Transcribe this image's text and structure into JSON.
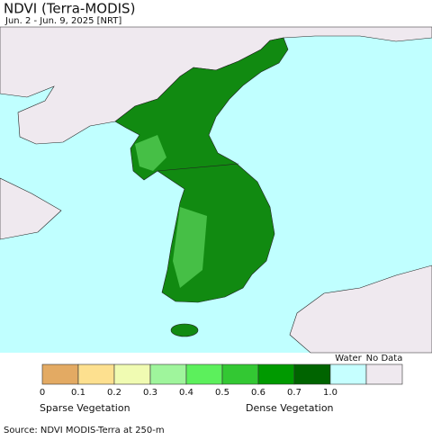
{
  "header": {
    "title": "NDVI (Terra-MODIS)",
    "subtitle": "Jun. 2 - Jun. 9, 2025 [NRT]"
  },
  "legend": {
    "bins": [
      {
        "color": "#e3aa63"
      },
      {
        "color": "#fde08f"
      },
      {
        "color": "#f0fbb2"
      },
      {
        "color": "#9ff59c"
      },
      {
        "color": "#5cf05c"
      },
      {
        "color": "#33c833"
      },
      {
        "color": "#009a00"
      },
      {
        "color": "#006400"
      }
    ],
    "ticks": [
      "0",
      "0.1",
      "0.2",
      "0.3",
      "0.4",
      "0.5",
      "0.6",
      "0.7",
      "1.0"
    ],
    "water": {
      "label": "Water",
      "color": "#c6ffff"
    },
    "no_data": {
      "label": "No Data",
      "color": "#efe9ef"
    },
    "sparse_label": "Sparse Vegetation",
    "dense_label": "Dense Vegetation"
  },
  "footer": {
    "source": "Source: NDVI MODIS-Terra at 250-m"
  }
}
